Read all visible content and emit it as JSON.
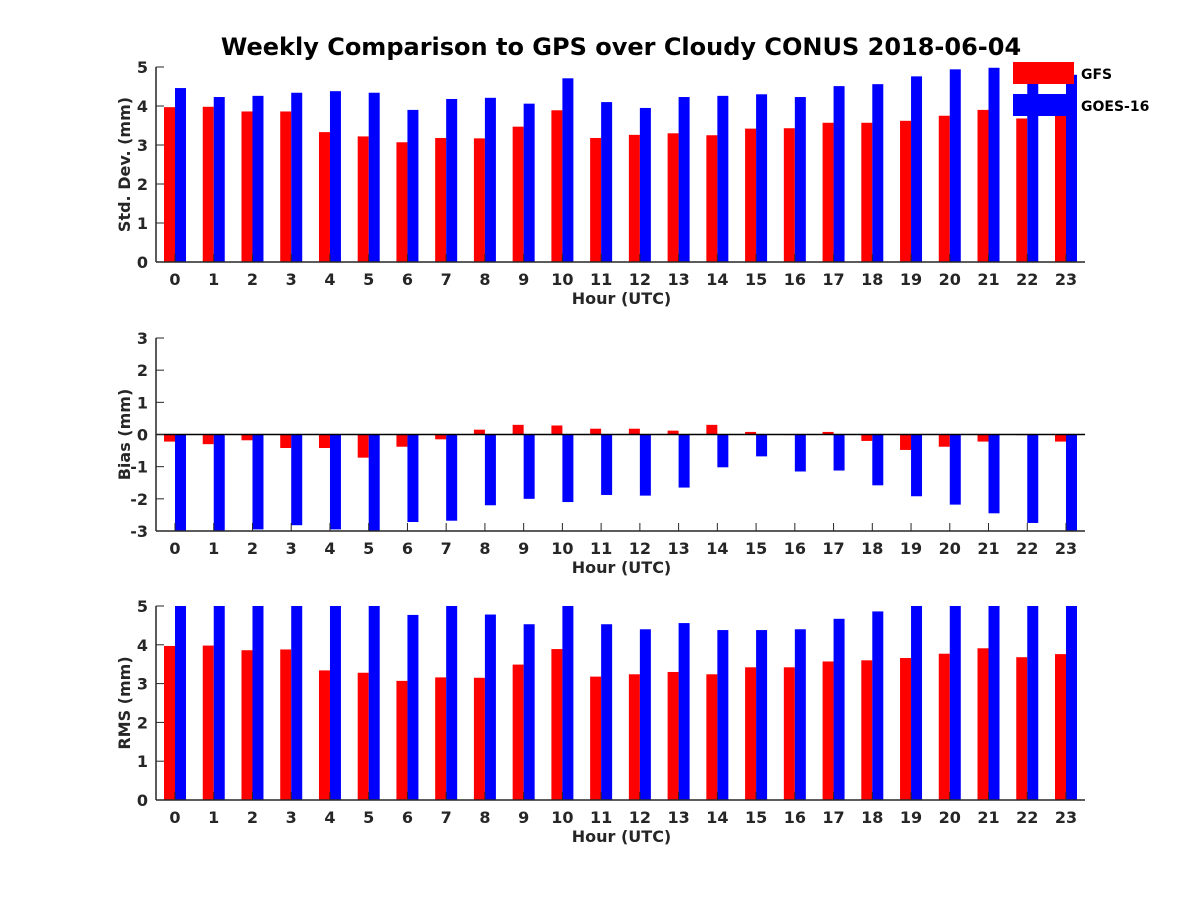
{
  "chart_data": {
    "title": "Weekly Comparison to GPS over Cloudy CONUS 2018-06-04",
    "colors": {
      "GFS": "#ff0000",
      "GOES-16": "#0000ff"
    },
    "legend": {
      "placement": "top-right",
      "entries": [
        "GFS",
        "GOES-16"
      ]
    },
    "panels": [
      {
        "type": "bar",
        "id": "std",
        "xlabel": "Hour (UTC)",
        "ylabel": "Std. Dev. (mm)",
        "ylim": [
          0,
          5
        ],
        "yticks": [
          "0",
          "1",
          "2",
          "3",
          "4",
          "5"
        ],
        "categories": [
          "0",
          "1",
          "2",
          "3",
          "4",
          "5",
          "6",
          "7",
          "8",
          "9",
          "10",
          "11",
          "12",
          "13",
          "14",
          "15",
          "16",
          "17",
          "18",
          "19",
          "20",
          "21",
          "22",
          "23"
        ],
        "series": [
          {
            "name": "GFS",
            "values": [
              3.97,
              3.98,
              3.86,
              3.86,
              3.33,
              3.22,
              3.07,
              3.18,
              3.17,
              3.47,
              3.89,
              3.18,
              3.26,
              3.3,
              3.25,
              3.42,
              3.43,
              3.57,
              3.57,
              3.62,
              3.75,
              3.9,
              3.68,
              3.75
            ]
          },
          {
            "name": "GOES-16",
            "values": [
              4.46,
              4.23,
              4.26,
              4.34,
              4.38,
              4.34,
              3.9,
              4.18,
              4.21,
              4.06,
              4.71,
              4.1,
              3.95,
              4.23,
              4.26,
              4.3,
              4.23,
              4.51,
              4.56,
              4.76,
              4.94,
              4.98,
              4.94,
              4.8
            ]
          }
        ],
        "grid": false
      },
      {
        "type": "bar",
        "id": "bias",
        "xlabel": "Hour (UTC)",
        "ylabel": "Bias (mm)",
        "ylim": [
          -3,
          3
        ],
        "yticks": [
          "-3",
          "-2",
          "-1",
          "0",
          "1",
          "2",
          "3"
        ],
        "categories": [
          "0",
          "1",
          "2",
          "3",
          "4",
          "5",
          "6",
          "7",
          "8",
          "9",
          "10",
          "11",
          "12",
          "13",
          "14",
          "15",
          "16",
          "17",
          "18",
          "19",
          "20",
          "21",
          "22",
          "23"
        ],
        "series": [
          {
            "name": "GFS",
            "values": [
              -0.22,
              -0.3,
              -0.18,
              -0.42,
              -0.42,
              -0.72,
              -0.38,
              -0.15,
              0.15,
              0.3,
              0.28,
              0.18,
              0.18,
              0.12,
              0.3,
              0.08,
              0.0,
              0.08,
              -0.2,
              -0.48,
              -0.38,
              -0.22,
              -0.02,
              -0.22
            ]
          },
          {
            "name": "GOES-16",
            "values": [
              -3.0,
              -3.0,
              -2.95,
              -2.82,
              -2.95,
              -3.0,
              -2.72,
              -2.68,
              -2.2,
              -2.0,
              -2.1,
              -1.88,
              -1.9,
              -1.65,
              -1.02,
              -0.68,
              -1.15,
              -1.12,
              -1.58,
              -1.92,
              -2.18,
              -2.45,
              -2.75,
              -3.0
            ]
          }
        ],
        "grid": false
      },
      {
        "type": "bar",
        "id": "rms",
        "xlabel": "Hour (UTC)",
        "ylabel": "RMS (mm)",
        "ylim": [
          0,
          5
        ],
        "yticks": [
          "0",
          "1",
          "2",
          "3",
          "4",
          "5"
        ],
        "categories": [
          "0",
          "1",
          "2",
          "3",
          "4",
          "5",
          "6",
          "7",
          "8",
          "9",
          "10",
          "11",
          "12",
          "13",
          "14",
          "15",
          "16",
          "17",
          "18",
          "19",
          "20",
          "21",
          "22",
          "23"
        ],
        "series": [
          {
            "name": "GFS",
            "values": [
              3.97,
              3.98,
              3.86,
              3.88,
              3.34,
              3.28,
              3.07,
              3.16,
              3.15,
              3.49,
              3.89,
              3.18,
              3.24,
              3.3,
              3.24,
              3.42,
              3.42,
              3.57,
              3.6,
              3.66,
              3.77,
              3.91,
              3.68,
              3.76
            ]
          },
          {
            "name": "GOES-16",
            "values": [
              5.0,
              5.0,
              5.0,
              5.0,
              5.0,
              5.0,
              4.77,
              5.0,
              4.78,
              4.53,
              5.0,
              4.53,
              4.4,
              4.56,
              4.38,
              4.38,
              4.4,
              4.67,
              4.86,
              5.0,
              5.0,
              5.0,
              5.0,
              5.0
            ]
          }
        ],
        "grid": false
      }
    ]
  }
}
